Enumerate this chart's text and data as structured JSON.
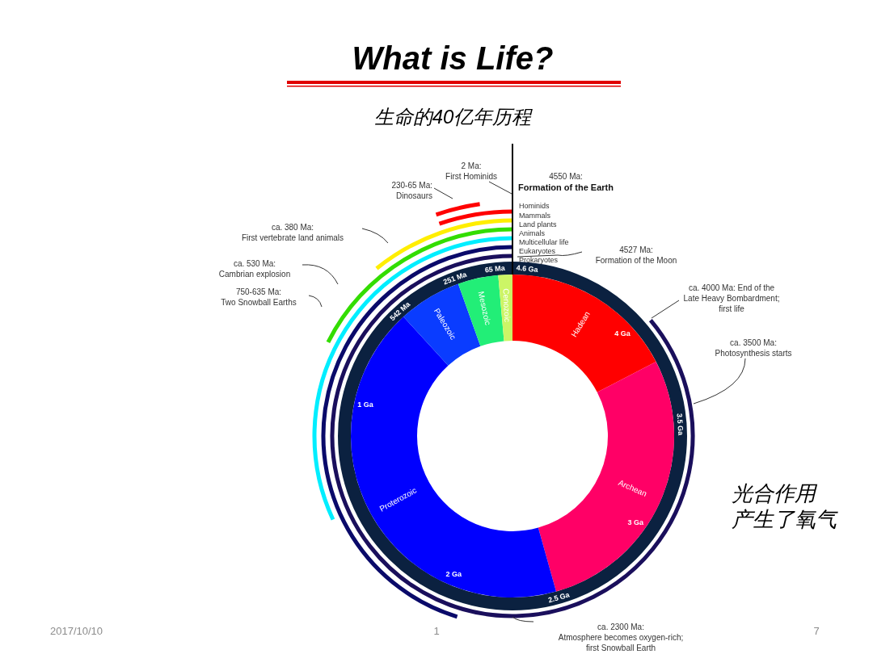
{
  "chart_data": {
    "type": "donut",
    "title": "What is Life?",
    "subtitle": "生命的40亿年历程",
    "categories": [
      "Hadean",
      "Archean",
      "Proterozoic",
      "Paleozoic",
      "Mesozoic",
      "Cenozoic"
    ],
    "values": [
      17.39,
      28.26,
      42.57,
      6.33,
      4.04,
      1.41
    ],
    "colors": [
      "#ff0000",
      "#ff0066",
      "#0000ff",
      "#0a3cff",
      "#22ee77",
      "#ccf566"
    ],
    "annotations": [
      "2 Ma:\nFirst Hominids",
      "4550 Ma:\nFormation of the Earth",
      "230-65 Ma:\nDinosaurs",
      "ca. 380 Ma:\nFirst vertebrate land animals",
      "ca. 530 Ma:\nCambrian explosion",
      "750-635 Ma:\nTwo Snowball Earths",
      "4527 Ma:\nFormation of the Moon",
      "ca. 4000 Ma: End of the\nLate Heavy Bombardment;\nfirst life",
      "ca. 3500 Ma:\nPhotosynthesis starts",
      "ca. 2300 Ma:\nAtmosphere becomes oxygen-rich;\nfirst Snowball Earth",
      "Hominids",
      "Mammals",
      "Land plants",
      "Animals",
      "Multicellular life",
      "Eukaryotes",
      "Prokaryotes",
      "4.6 Ga",
      "4 Ga",
      "3.5 Ga",
      "3 Ga",
      "2.5 Ga",
      "2 Ga",
      "1 Ga",
      "542 Ma",
      "251 Ma",
      "65 Ma",
      "光合作用",
      "产生了氧气",
      "2017/10/10",
      "1",
      "7"
    ]
  }
}
